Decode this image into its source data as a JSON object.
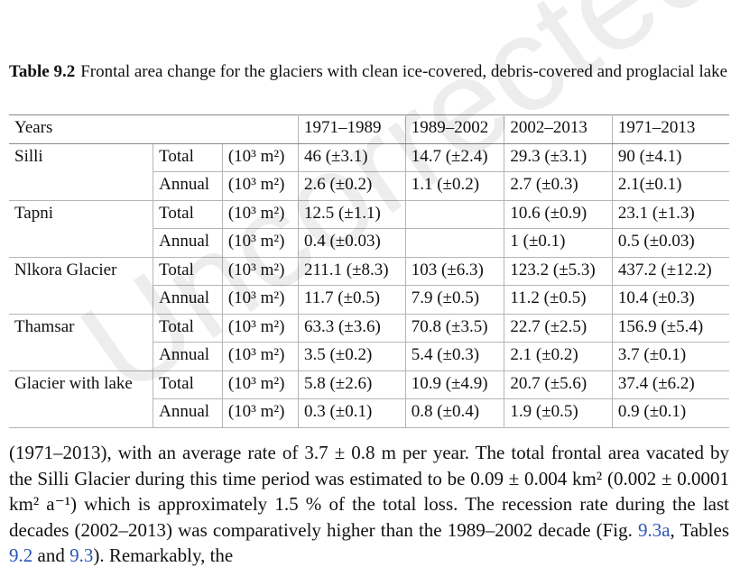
{
  "caption": {
    "label": "Table 9.2",
    "text": "Frontal area change for the glaciers with clean ice-covered, debris-covered and proglacial lake"
  },
  "table": {
    "header": [
      "Years",
      "1971–1989",
      "1989–2002",
      "2002–2013",
      "1971–2013"
    ],
    "groups": [
      {
        "name": "Silli",
        "rows": [
          {
            "type": "Total",
            "unit": "(10³ m²)",
            "cells": [
              "46 (±3.1)",
              "14.7 (±2.4)",
              "29.3 (±3.1)",
              "90 (±4.1)"
            ]
          },
          {
            "type": "Annual",
            "unit": "(10³ m²)",
            "cells": [
              "2.6 (±0.2)",
              "1.1 (±0.2)",
              "2.7 (±0.3)",
              "2.1(±0.1)"
            ]
          }
        ]
      },
      {
        "name": "Tapni",
        "rows": [
          {
            "type": "Total",
            "unit": "(10³ m²)",
            "cells": [
              "12.5 (±1.1)",
              null,
              "10.6 (±0.9)",
              "23.1 (±1.3)"
            ]
          },
          {
            "type": "Annual",
            "unit": "(10³ m²)",
            "cells": [
              "0.4 (±0.03)",
              null,
              "1 (±0.1)",
              "0.5 (±0.03)"
            ]
          }
        ]
      },
      {
        "name": "Nlkora Glacier",
        "rows": [
          {
            "type": "Total",
            "unit": "(10³ m²)",
            "cells": [
              "211.1 (±8.3)",
              "103 (±6.3)",
              "123.2 (±5.3)",
              "437.2 (±12.2)"
            ]
          },
          {
            "type": "Annual",
            "unit": "(10³ m²)",
            "cells": [
              "11.7 (±0.5)",
              "7.9 (±0.5)",
              "11.2 (±0.5)",
              "10.4 (±0.3)"
            ]
          }
        ]
      },
      {
        "name": "Thamsar",
        "rows": [
          {
            "type": "Total",
            "unit": "(10³ m²)",
            "cells": [
              "63.3 (±3.6)",
              "70.8 (±3.5)",
              "22.7 (±2.5)",
              "156.9 (±5.4)"
            ]
          },
          {
            "type": "Annual",
            "unit": "(10³ m²)",
            "cells": [
              "3.5 (±0.2)",
              "5.4 (±0.3)",
              "2.1 (±0.2)",
              "3.7 (±0.1)"
            ]
          }
        ]
      },
      {
        "name": "Glacier with lake",
        "rows": [
          {
            "type": "Total",
            "unit": "(10³ m²)",
            "cells": [
              "5.8 (±2.6)",
              "10.9 (±4.9)",
              "20.7 (±5.6)",
              "37.4 (±6.2)"
            ]
          },
          {
            "type": "Annual",
            "unit": "(10³ m²)",
            "cells": [
              "0.3 (±0.1)",
              "0.8 (±0.4)",
              "1.9 (±0.5)",
              "0.9 (±0.1)"
            ]
          }
        ]
      }
    ]
  },
  "paragraph": [
    "(1971–2013), with an average rate of 3.7 ± 0.8 m per year. The total frontal area vacated by the Silli Glacier during this time period was estimated to be 0.09 ± 0.004 km² (0.002 ± 0.0001 km² a⁻¹) which is approximately 1.5 % of the total loss. The recession rate during the last decades (2002–2013) was comparatively higher than the 1989–2002 decade (Fig. ",
    {
      "link": "9.3a"
    },
    ", Tables ",
    {
      "link": "9.2"
    },
    " and ",
    {
      "link": "9.3"
    },
    "). Remarkably, the"
  ],
  "watermark": "Uncorrected Proof"
}
